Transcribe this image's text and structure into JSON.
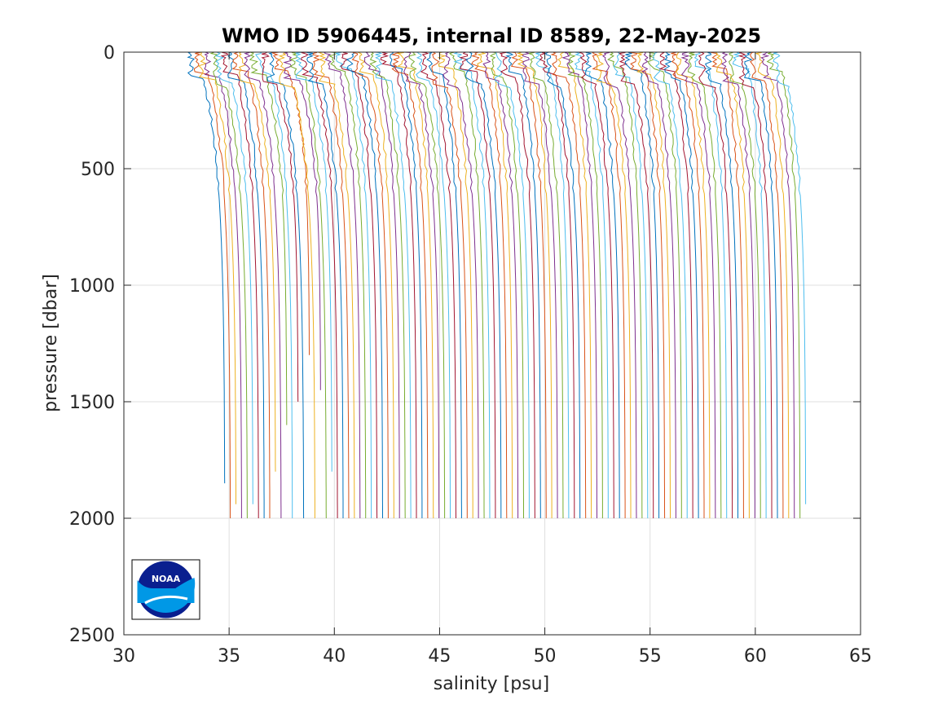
{
  "chart_data": {
    "type": "line",
    "title": "WMO ID 5906445, internal ID 8589, 22-May-2025",
    "xlabel": "salinity [psu]",
    "ylabel": "pressure [dbar]",
    "xlim": [
      30,
      65
    ],
    "ylim": [
      0,
      2500
    ],
    "y_reversed": true,
    "grid": true,
    "x_ticks": [
      "30",
      "35",
      "40",
      "45",
      "50",
      "55",
      "60",
      "65"
    ],
    "y_ticks": [
      "0",
      "500",
      "1000",
      "1500",
      "2000",
      "2500"
    ],
    "series_layout": "successive profiles offset along salinity axis",
    "series_count": 104,
    "series_colors": [
      "#0072BD",
      "#D95319",
      "#EDB120",
      "#7E2F8E",
      "#77AC30",
      "#4DBEEE",
      "#A2142F"
    ],
    "first_profile": {
      "surface_salinity": 33.2,
      "deep_salinity": 34.8,
      "max_pressure": 1850
    },
    "last_profile": {
      "surface_salinity": 61.0,
      "deep_salinity": 62.4,
      "max_pressure": 1940
    },
    "profile_max_pressures": {
      "default": 2000,
      "shorter": [
        1850,
        1940,
        1940,
        1800,
        1600,
        1500,
        1300,
        1450,
        1800,
        1940
      ]
    },
    "logo": {
      "name": "noaa-logo",
      "text": "NOAA",
      "colors": [
        "#0a1f8f",
        "#0098e6"
      ]
    }
  }
}
